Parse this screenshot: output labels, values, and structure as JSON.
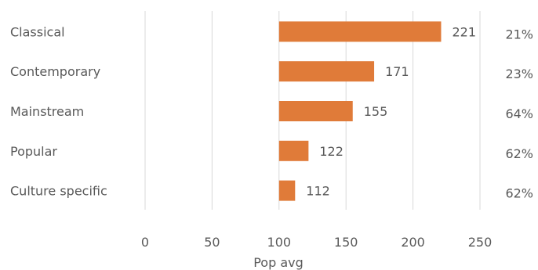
{
  "chart_data": {
    "type": "bar",
    "orientation": "horizontal",
    "categories": [
      "Classical",
      "Contemporary",
      "Mainstream",
      "Popular",
      "Culture specific"
    ],
    "values": [
      221,
      171,
      155,
      122,
      112
    ],
    "data_labels": [
      "221",
      "171",
      "155",
      "122",
      "112"
    ],
    "percentages": [
      "21%",
      "23%",
      "64%",
      "62%",
      "62%"
    ],
    "xlabel": "Pop avg",
    "ylabel": "",
    "xlim": [
      0,
      250
    ],
    "xticks": [
      0,
      50,
      100,
      150,
      200,
      250
    ],
    "xtick_labels": [
      "0",
      "50",
      "100",
      "150",
      "200",
      "250"
    ],
    "bar_start": 100,
    "grid": true,
    "bar_color": "#e07b39"
  }
}
